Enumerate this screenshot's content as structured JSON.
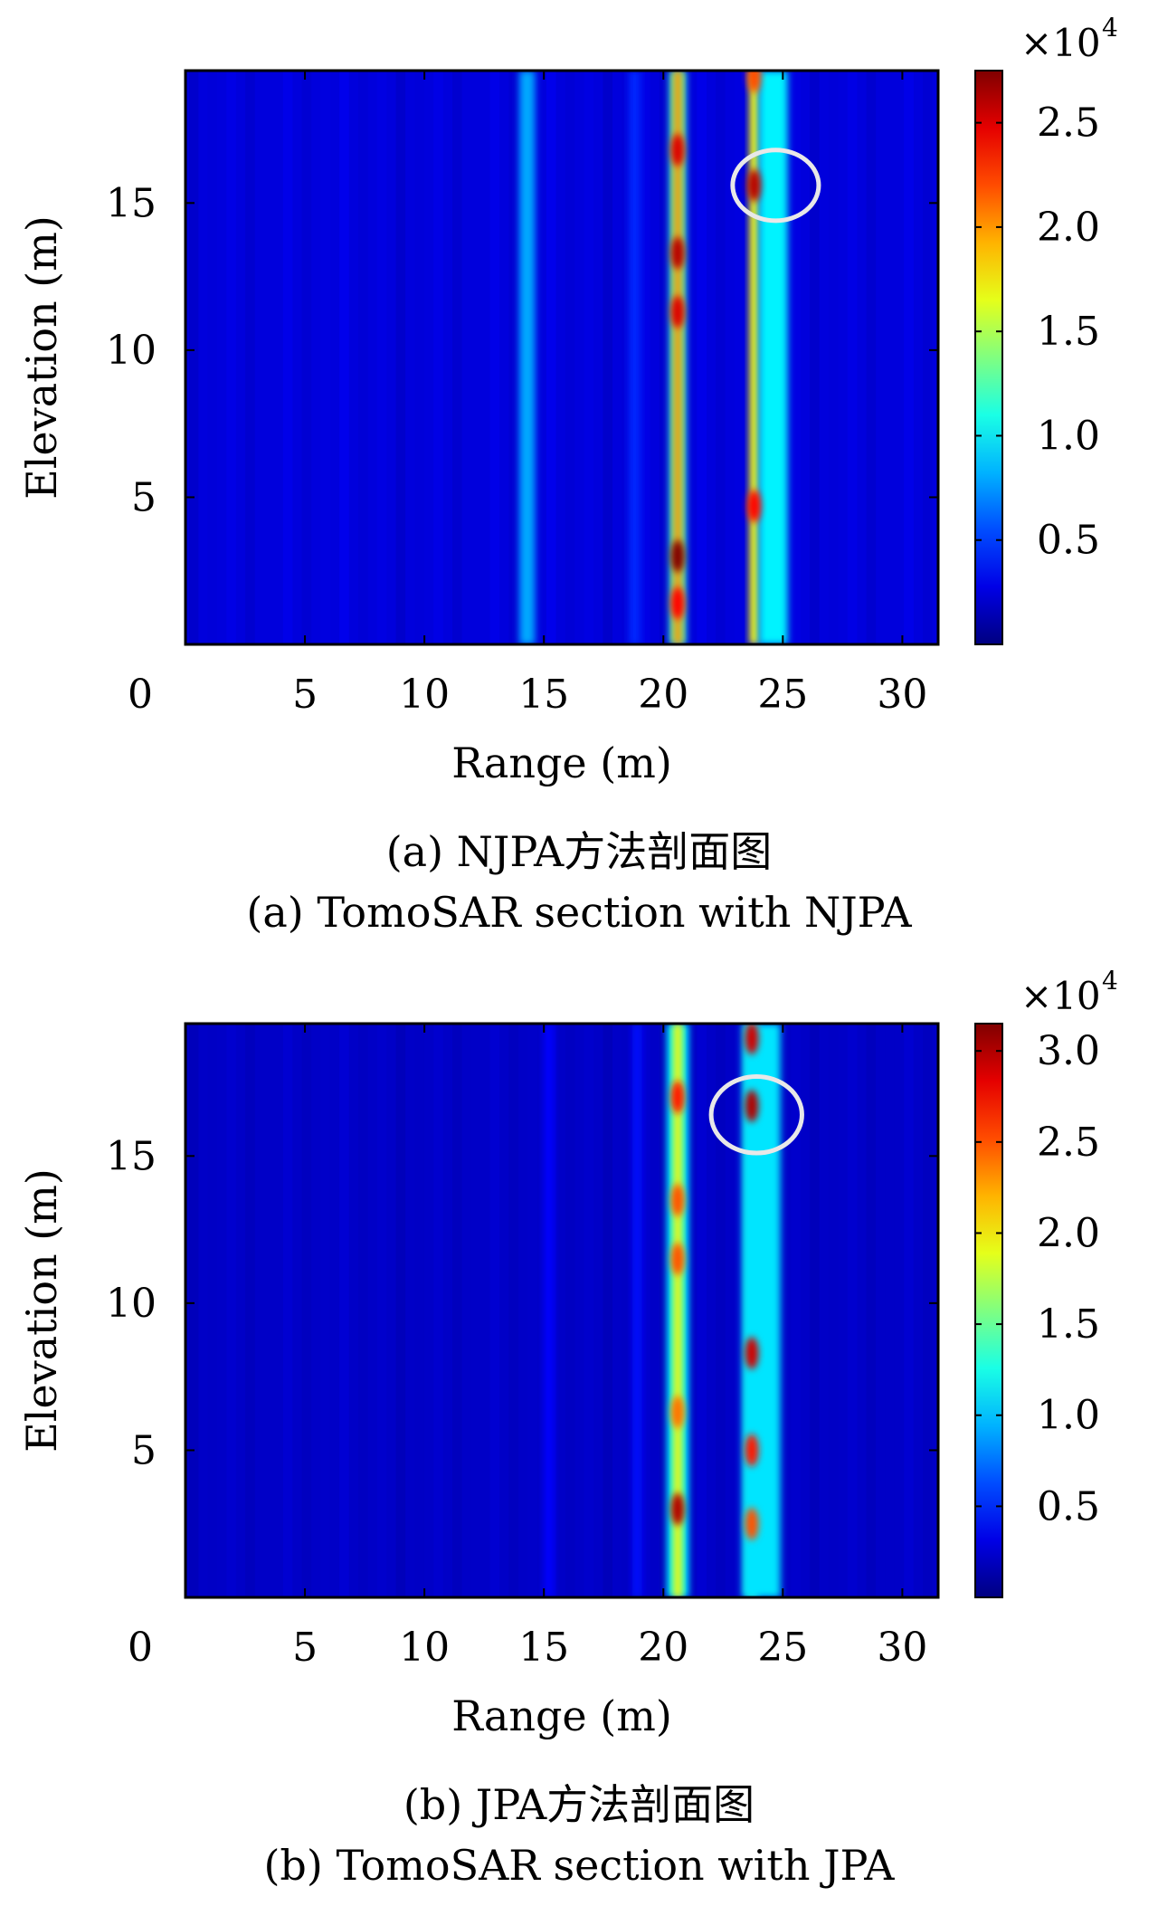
{
  "chart_data": [
    {
      "type": "heatmap",
      "panel": "a",
      "xlabel": "Range (m)",
      "ylabel": "Elevation (m)",
      "xlim": [
        0,
        31.5
      ],
      "ylim": [
        0,
        19.5
      ],
      "xticks": [
        0,
        5,
        10,
        15,
        20,
        25,
        30
      ],
      "yticks": [
        5,
        10,
        15
      ],
      "colorbar": {
        "range": [
          0,
          27500
        ],
        "ticks": [
          0.5,
          1.0,
          1.5,
          2.0,
          2.5
        ],
        "tick_labels": [
          "0.5",
          "1.0",
          "1.5",
          "2.0",
          "2.5"
        ],
        "multiplier": "×10",
        "exponent": "4"
      },
      "background_level": 2500,
      "columns": [
        {
          "range": 14.3,
          "width": 0.65,
          "level": 8000
        },
        {
          "range": 18.8,
          "width": 0.5,
          "level": 4500
        },
        {
          "range": 20.6,
          "width": 0.7,
          "level": 12000
        },
        {
          "range": 20.6,
          "width": 0.35,
          "level": 20000
        },
        {
          "range": 23.8,
          "width": 0.4,
          "level": 17000
        },
        {
          "range": 24.6,
          "width": 1.2,
          "level": 10000
        }
      ],
      "hotspots": [
        {
          "range": 20.6,
          "elevation": 16.8,
          "level": 25000
        },
        {
          "range": 20.6,
          "elevation": 13.3,
          "level": 26000
        },
        {
          "range": 20.6,
          "elevation": 11.3,
          "level": 25000
        },
        {
          "range": 20.6,
          "elevation": 3.0,
          "level": 27500
        },
        {
          "range": 20.6,
          "elevation": 1.4,
          "level": 24000
        },
        {
          "range": 23.8,
          "elevation": 19.3,
          "level": 22000
        },
        {
          "range": 23.8,
          "elevation": 15.6,
          "level": 26000
        },
        {
          "range": 23.8,
          "elevation": 4.7,
          "level": 24000
        }
      ],
      "ellipse": {
        "range": 24.7,
        "elevation": 15.6,
        "rx": 1.8,
        "ry": 1.2
      }
    },
    {
      "type": "heatmap",
      "panel": "b",
      "xlabel": "Range (m)",
      "ylabel": "Elevation (m)",
      "xlim": [
        0,
        31.5
      ],
      "ylim": [
        0,
        19.5
      ],
      "xticks": [
        0,
        5,
        10,
        15,
        20,
        25,
        30
      ],
      "yticks": [
        5,
        10,
        15
      ],
      "colorbar": {
        "range": [
          0,
          31500
        ],
        "ticks": [
          0.5,
          1.0,
          1.5,
          2.0,
          2.5,
          3.0
        ],
        "tick_labels": [
          "0.5",
          "1.0",
          "1.5",
          "2.0",
          "2.5",
          "3.0"
        ],
        "multiplier": "×10",
        "exponent": "4"
      },
      "background_level": 2200,
      "columns": [
        {
          "range": 15.2,
          "width": 0.4,
          "level": 4000
        },
        {
          "range": 18.9,
          "width": 0.4,
          "level": 4200
        },
        {
          "range": 20.6,
          "width": 0.9,
          "level": 12000
        },
        {
          "range": 20.6,
          "width": 0.35,
          "level": 20000
        },
        {
          "range": 23.7,
          "width": 0.5,
          "level": 14000
        },
        {
          "range": 24.1,
          "width": 1.6,
          "level": 11000
        }
      ],
      "hotspots": [
        {
          "range": 20.6,
          "elevation": 17.0,
          "level": 27000
        },
        {
          "range": 20.6,
          "elevation": 13.5,
          "level": 25000
        },
        {
          "range": 20.6,
          "elevation": 11.5,
          "level": 25000
        },
        {
          "range": 20.6,
          "elevation": 6.3,
          "level": 24000
        },
        {
          "range": 20.6,
          "elevation": 3.0,
          "level": 30000
        },
        {
          "range": 23.7,
          "elevation": 19.0,
          "level": 29000
        },
        {
          "range": 23.7,
          "elevation": 16.7,
          "level": 30000
        },
        {
          "range": 23.7,
          "elevation": 8.3,
          "level": 29000
        },
        {
          "range": 23.7,
          "elevation": 5.0,
          "level": 27000
        },
        {
          "range": 23.7,
          "elevation": 2.5,
          "level": 25000
        }
      ],
      "ellipse": {
        "range": 23.9,
        "elevation": 16.4,
        "rx": 1.9,
        "ry": 1.3
      }
    }
  ],
  "captions": {
    "a_cn": "(a) NJPA方法剖面图",
    "a_en": "(a) TomoSAR section with NJPA",
    "b_cn": "(b) JPA方法剖面图",
    "b_en": "(b) TomoSAR section with JPA"
  }
}
